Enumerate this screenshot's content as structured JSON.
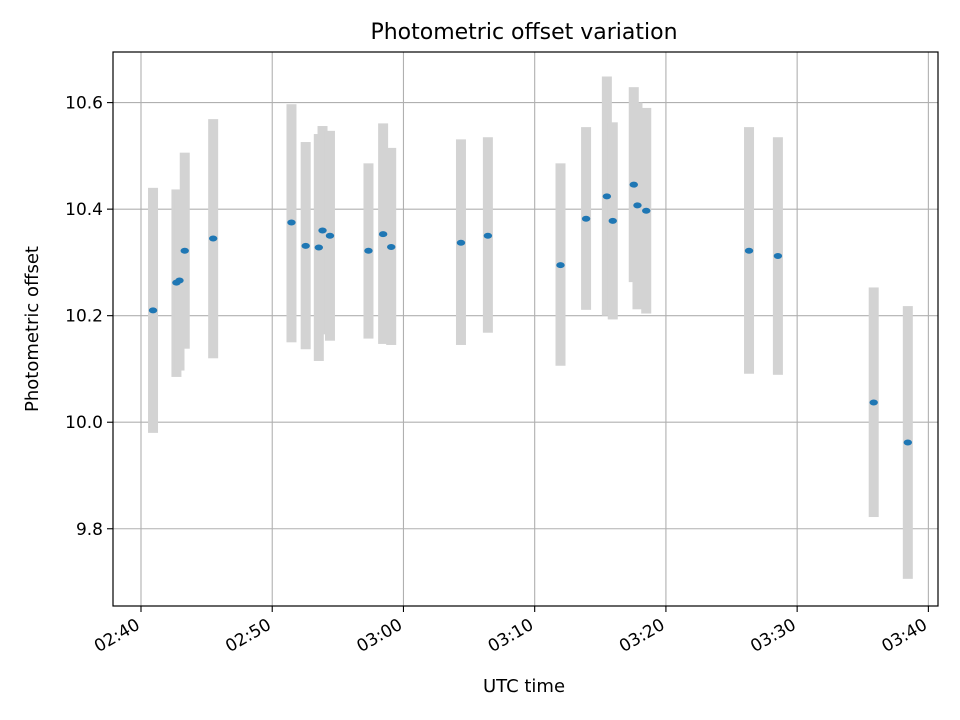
{
  "chart_data": {
    "type": "scatter",
    "title": "Photometric offset variation",
    "xlabel": "UTC time",
    "ylabel": "Photometric offset",
    "x_unit": "UTC time (HH:MM)",
    "xlim": [
      "02:37:52",
      "03:40:44"
    ],
    "ylim": [
      9.655,
      10.695
    ],
    "grid": true,
    "x_ticks": [
      "02:40",
      "02:50",
      "03:00",
      "03:10",
      "03:20",
      "03:30",
      "03:40"
    ],
    "y_ticks": [
      "9.8",
      "10.0",
      "10.2",
      "10.4",
      "10.6"
    ],
    "marker_color": "#1f77b4",
    "errorbar_color": "#d3d3d3",
    "series": [
      {
        "points": [
          {
            "t": "02:40:55",
            "y": 10.21,
            "lo": 9.98,
            "hi": 10.44
          },
          {
            "t": "02:42:42",
            "y": 10.262,
            "lo": 10.085,
            "hi": 10.437
          },
          {
            "t": "02:42:56",
            "y": 10.266,
            "lo": 10.097,
            "hi": 10.435
          },
          {
            "t": "02:43:20",
            "y": 10.322,
            "lo": 10.138,
            "hi": 10.506
          },
          {
            "t": "02:45:30",
            "y": 10.345,
            "lo": 10.12,
            "hi": 10.569
          },
          {
            "t": "02:51:28",
            "y": 10.375,
            "lo": 10.15,
            "hi": 10.597
          },
          {
            "t": "02:52:33",
            "y": 10.331,
            "lo": 10.137,
            "hi": 10.526
          },
          {
            "t": "02:53:33",
            "y": 10.328,
            "lo": 10.115,
            "hi": 10.541
          },
          {
            "t": "02:53:50",
            "y": 10.36,
            "lo": 10.165,
            "hi": 10.556
          },
          {
            "t": "02:54:24",
            "y": 10.35,
            "lo": 10.153,
            "hi": 10.547
          },
          {
            "t": "02:57:20",
            "y": 10.322,
            "lo": 10.157,
            "hi": 10.486
          },
          {
            "t": "02:58:27",
            "y": 10.353,
            "lo": 10.147,
            "hi": 10.561
          },
          {
            "t": "02:59:04",
            "y": 10.329,
            "lo": 10.145,
            "hi": 10.515
          },
          {
            "t": "03:04:23",
            "y": 10.337,
            "lo": 10.145,
            "hi": 10.531
          },
          {
            "t": "03:06:26",
            "y": 10.35,
            "lo": 10.168,
            "hi": 10.535
          },
          {
            "t": "03:11:58",
            "y": 10.295,
            "lo": 10.106,
            "hi": 10.486
          },
          {
            "t": "03:13:55",
            "y": 10.382,
            "lo": 10.211,
            "hi": 10.554
          },
          {
            "t": "03:15:30",
            "y": 10.424,
            "lo": 10.2,
            "hi": 10.649
          },
          {
            "t": "03:15:57",
            "y": 10.378,
            "lo": 10.193,
            "hi": 10.563
          },
          {
            "t": "03:17:33",
            "y": 10.446,
            "lo": 10.263,
            "hi": 10.629
          },
          {
            "t": "03:17:50",
            "y": 10.407,
            "lo": 10.212,
            "hi": 10.6
          },
          {
            "t": "03:18:30",
            "y": 10.397,
            "lo": 10.204,
            "hi": 10.59
          },
          {
            "t": "03:26:20",
            "y": 10.322,
            "lo": 10.091,
            "hi": 10.554
          },
          {
            "t": "03:28:32",
            "y": 10.312,
            "lo": 10.089,
            "hi": 10.535
          },
          {
            "t": "03:35:50",
            "y": 10.037,
            "lo": 9.822,
            "hi": 10.253
          },
          {
            "t": "03:38:26",
            "y": 9.962,
            "lo": 9.706,
            "hi": 10.218
          }
        ]
      }
    ]
  }
}
